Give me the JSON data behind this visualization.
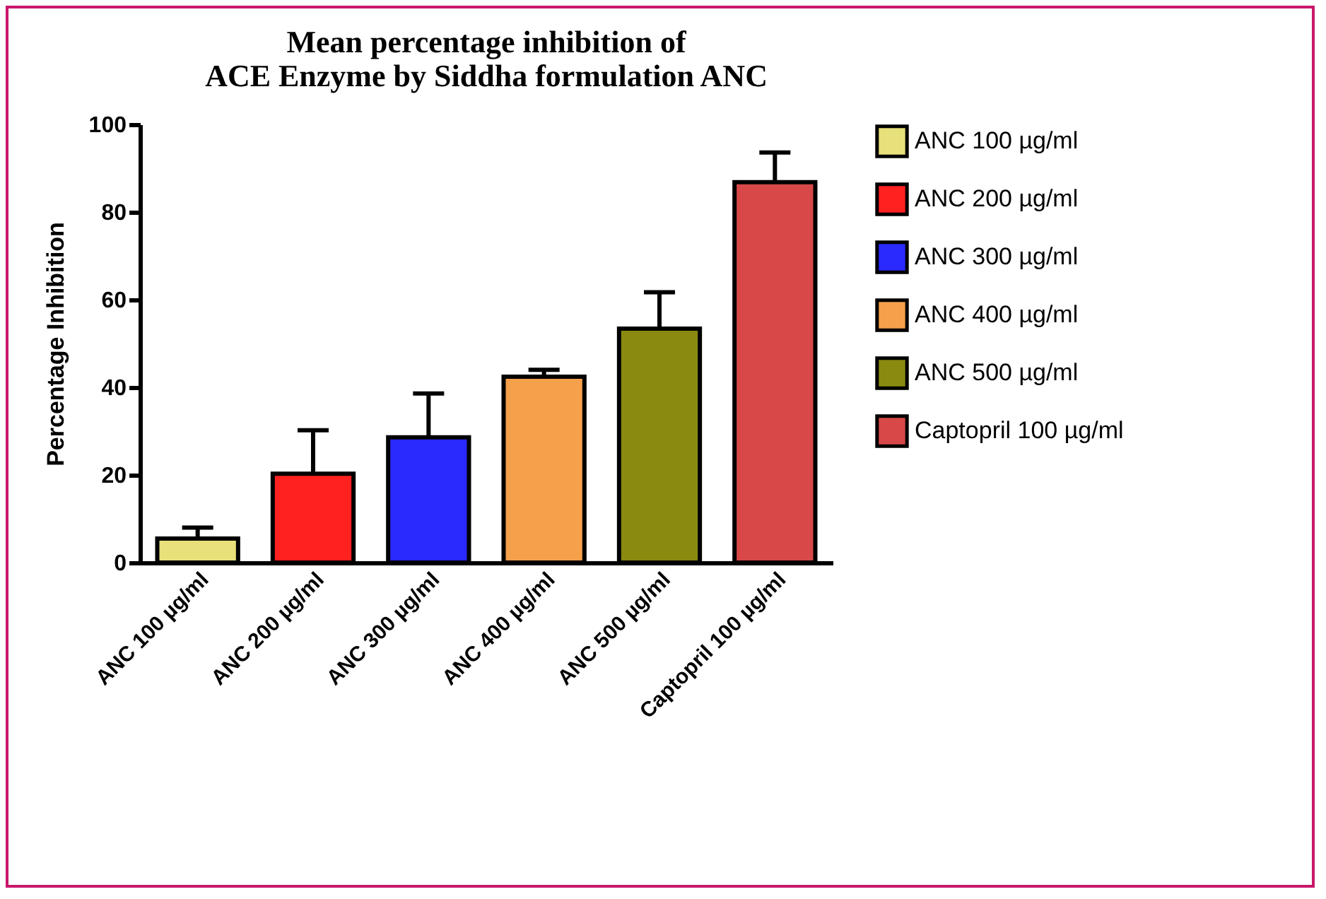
{
  "chart_data": {
    "type": "bar",
    "title": "Mean percentage inhibition of\nACE Enzyme by Siddha formulation ANC",
    "ylabel": "Percentage Inhibition",
    "categories": [
      "ANC 100 µg/ml",
      "ANC 200 µg/ml",
      "ANC 300 µg/ml",
      "ANC 400 µg/ml",
      "ANC 500 µg/ml",
      "Captopril 100 µg/ml"
    ],
    "stacked": true,
    "series": [
      {
        "name": "ANC 100 µg/ml",
        "color": "#e8e07a",
        "values": [
          5.5,
          null,
          null,
          null,
          null,
          null
        ],
        "errors": [
          [
            5.5,
            8.0
          ],
          null,
          null,
          null,
          null,
          null
        ]
      },
      {
        "name": "ANC 200 µg/ml",
        "color": "#ff2020",
        "values": [
          null,
          20.3,
          null,
          null,
          null,
          null
        ],
        "errors": [
          null,
          [
            20.3,
            30.2
          ],
          null,
          null,
          null,
          null
        ]
      },
      {
        "name": "ANC 300 µg/ml",
        "color": "#2a2aff",
        "values": [
          null,
          null,
          28.6,
          null,
          null,
          null
        ],
        "errors": [
          null,
          null,
          [
            28.6,
            38.6
          ],
          null,
          null,
          null
        ]
      },
      {
        "name": "ANC 400 µg/ml",
        "color": "#f5a04a",
        "values": [
          null,
          null,
          null,
          42.4,
          null,
          null
        ],
        "errors": [
          null,
          null,
          null,
          [
            42.4,
            44.0
          ],
          null,
          null
        ]
      },
      {
        "name": "ANC 500 µg/ml",
        "color": "#8a8a10",
        "values": [
          null,
          null,
          null,
          null,
          53.4,
          null
        ],
        "errors": [
          null,
          null,
          null,
          null,
          [
            53.4,
            61.7
          ],
          null
        ]
      },
      {
        "name": "Captopril 100 µg/ml",
        "color": "#d84848",
        "values": [
          null,
          null,
          null,
          null,
          null,
          86.8
        ],
        "errors": [
          null,
          null,
          null,
          null,
          null,
          [
            86.8,
            93.6
          ]
        ]
      }
    ],
    "ylim": [
      0,
      100
    ],
    "yticks": [
      0,
      20,
      40,
      60,
      80,
      100
    ],
    "grid": false,
    "legend": "right"
  }
}
